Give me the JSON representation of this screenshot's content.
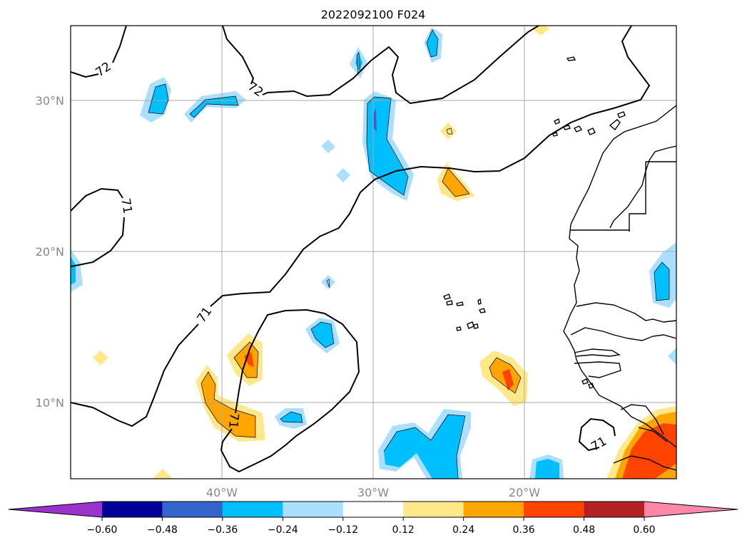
{
  "map": {
    "title": "2022092100 F024",
    "lat_labels": [
      "30°N",
      "20°N",
      "10°N"
    ],
    "lon_labels": [
      "40°W",
      "30°W",
      "20°W"
    ],
    "contour_labels": [
      "72",
      "72",
      "71",
      "71",
      "71",
      "71"
    ],
    "colorbar": {
      "ticks": [
        "−0.60",
        "−0.48",
        "−0.36",
        "−0.24",
        "−0.12",
        "0.12",
        "0.24",
        "0.36",
        "0.48",
        "0.60"
      ],
      "colors": [
        "#9933cc",
        "#000099",
        "#3366cc",
        "#00bfff",
        "#aadfff",
        "#ffffff",
        "#ffe88a",
        "#ffa500",
        "#ff4400",
        "#b22222",
        "#ff88aa"
      ]
    }
  }
}
